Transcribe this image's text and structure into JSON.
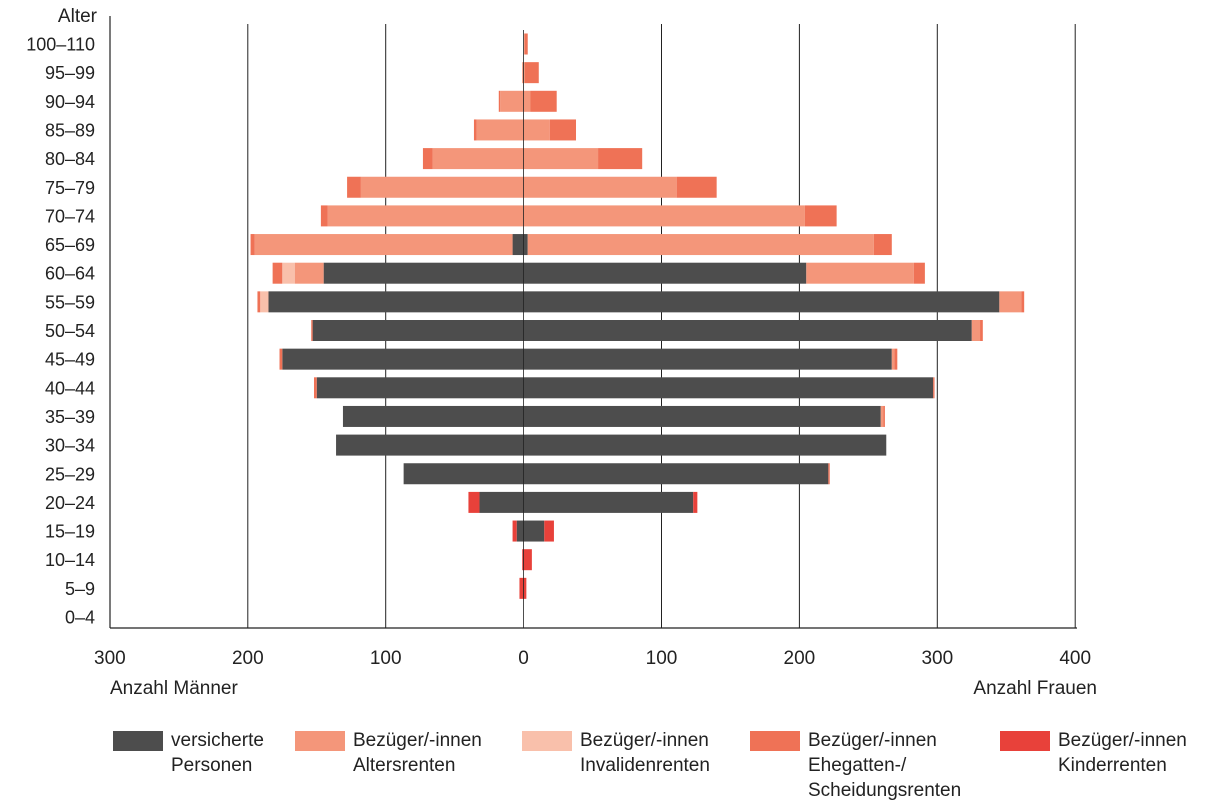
{
  "chart_data": {
    "type": "bar",
    "orientation": "horizontal",
    "stacked": true,
    "diverging": true,
    "y_title": "Alter",
    "categories": [
      "100–110",
      "95–99",
      "90–94",
      "85–89",
      "80–84",
      "75–79",
      "70–74",
      "65–69",
      "60–64",
      "55–59",
      "50–54",
      "45–49",
      "40–44",
      "35–39",
      "30–34",
      "25–29",
      "20–24",
      "15–19",
      "10–14",
      "5–9",
      "0–4"
    ],
    "x_ticks": [
      "300",
      "200",
      "100",
      "0",
      "100",
      "200",
      "300",
      "400"
    ],
    "xlim": [
      -300,
      400
    ],
    "grid": "vertical lines at every 100",
    "xlabel_left": "Anzahl Männer",
    "xlabel_right": "Anzahl Frauen",
    "legend_position": "bottom",
    "series": [
      {
        "name": "versicherte Personen",
        "color": "#4d4d4d",
        "men": [
          0,
          0,
          0,
          0,
          0,
          0,
          0,
          8,
          145,
          185,
          153,
          175,
          150,
          131,
          136,
          87,
          32,
          5,
          0,
          0,
          0
        ],
        "women": [
          0,
          0,
          0,
          0,
          0,
          0,
          0,
          3,
          205,
          345,
          325,
          267,
          297,
          259,
          263,
          221,
          123,
          15,
          0,
          0,
          0
        ]
      },
      {
        "name": "Bezüger/-innen Altersrenten",
        "color": "#f4967a",
        "men": [
          0,
          1,
          17,
          34,
          66,
          118,
          142,
          187,
          21,
          0,
          0,
          0,
          0,
          0,
          0,
          0,
          0,
          0,
          0,
          0,
          0
        ],
        "women": [
          1,
          1,
          5,
          19,
          54,
          111,
          204,
          251,
          78,
          16,
          6,
          2,
          0,
          2,
          0,
          0,
          0,
          0,
          0,
          0,
          0
        ]
      },
      {
        "name": "Bezüger/-innen Invalidenrenten",
        "color": "#f9c0ab",
        "men": [
          0,
          0,
          0,
          0,
          0,
          0,
          0,
          0,
          9,
          6,
          0,
          0,
          0,
          0,
          0,
          0,
          0,
          0,
          0,
          0,
          0
        ],
        "women": [
          0,
          0,
          0,
          0,
          0,
          0,
          0,
          0,
          0,
          0,
          0,
          0,
          0,
          0,
          0,
          0,
          0,
          0,
          0,
          0,
          0
        ]
      },
      {
        "name": "Bezüger/-innen Ehegatten-/ Scheidungsrenten",
        "color": "#ef7256",
        "men": [
          0,
          0,
          1,
          2,
          7,
          10,
          5,
          3,
          7,
          2,
          1,
          2,
          2,
          0,
          0,
          0,
          0,
          0,
          0,
          0,
          0
        ],
        "women": [
          2,
          10,
          19,
          19,
          32,
          29,
          23,
          13,
          8,
          2,
          2,
          2,
          1,
          1,
          0,
          1,
          0,
          0,
          0,
          0,
          0
        ]
      },
      {
        "name": "Bezüger/-innen Kinderrenten",
        "color": "#e8413a",
        "men": [
          0,
          0,
          0,
          0,
          0,
          0,
          0,
          0,
          0,
          0,
          0,
          0,
          0,
          0,
          0,
          0,
          8,
          3,
          1,
          3,
          0
        ],
        "women": [
          0,
          0,
          0,
          0,
          0,
          0,
          0,
          0,
          0,
          0,
          0,
          0,
          0,
          0,
          0,
          0,
          3,
          7,
          6,
          2,
          0
        ]
      }
    ]
  },
  "legend": {
    "items": [
      {
        "label": "versicherte\nPersonen",
        "color": "#4d4d4d"
      },
      {
        "label": "Bezüger/-innen\nAltersrenten",
        "color": "#f4967a"
      },
      {
        "label": "Bezüger/-innen\nInvalidenrenten",
        "color": "#f9c0ab"
      },
      {
        "label": "Bezüger/-innen\nEhegatten-/\nScheidungsrenten",
        "color": "#ef7256"
      },
      {
        "label": "Bezüger/-innen\nKinderrenten",
        "color": "#e8413a"
      }
    ]
  }
}
